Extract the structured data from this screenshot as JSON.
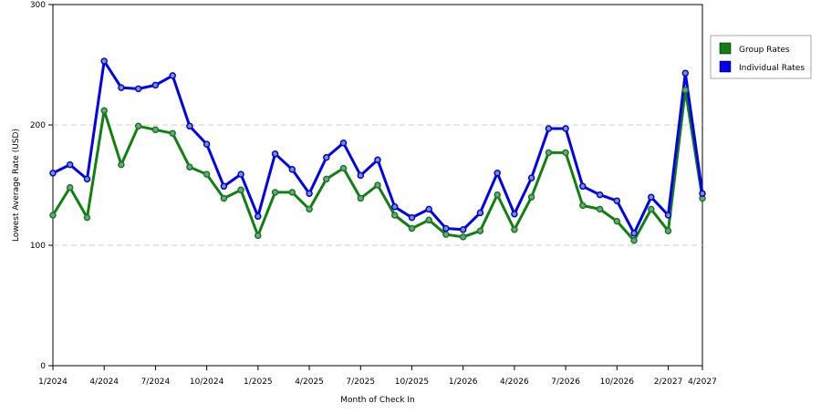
{
  "chart_data": {
    "type": "line",
    "xlabel": "Month of Check In",
    "ylabel": "Lowest Average Rate (USD)",
    "ylim": [
      0,
      300
    ],
    "yticks": [
      0,
      100,
      200,
      300
    ],
    "grid": true,
    "legend_position": "top-right",
    "x_tick_labels": [
      "1/2024",
      "4/2024",
      "7/2024",
      "10/2024",
      "1/2025",
      "4/2025",
      "7/2025",
      "10/2025",
      "1/2026",
      "4/2026",
      "7/2026",
      "10/2026",
      "2/2027",
      "4/2027"
    ],
    "x": [
      "1/2024",
      "2/2024",
      "3/2024",
      "4/2024",
      "5/2024",
      "6/2024",
      "7/2024",
      "8/2024",
      "9/2024",
      "10/2024",
      "11/2024",
      "12/2024",
      "1/2025",
      "2/2025",
      "3/2025",
      "4/2025",
      "5/2025",
      "6/2025",
      "7/2025",
      "8/2025",
      "9/2025",
      "10/2025",
      "11/2025",
      "12/2025",
      "1/2026",
      "2/2026",
      "3/2026",
      "4/2026",
      "5/2026",
      "6/2026",
      "7/2026",
      "8/2026",
      "9/2026",
      "10/2026",
      "11/2026",
      "12/2026",
      "2/2027",
      "3/2027",
      "4/2027"
    ],
    "series": [
      {
        "name": "Group Rates",
        "color": "#118011",
        "values": [
          125,
          148,
          123,
          212,
          167,
          199,
          196,
          193,
          165,
          159,
          139,
          146,
          108,
          144,
          144,
          130,
          155,
          164,
          139,
          150,
          125,
          114,
          121,
          109,
          107,
          112,
          142,
          113,
          140,
          177,
          177,
          133,
          130,
          120,
          104,
          130,
          112,
          229,
          139
        ]
      },
      {
        "name": "Individual Rates",
        "color": "#0000ee",
        "values": [
          160,
          167,
          155,
          253,
          231,
          230,
          233,
          241,
          199,
          184,
          149,
          159,
          124,
          176,
          163,
          143,
          173,
          185,
          158,
          171,
          132,
          123,
          130,
          114,
          113,
          127,
          160,
          126,
          156,
          197,
          197,
          149,
          142,
          137,
          110,
          140,
          125,
          243,
          143
        ]
      }
    ]
  }
}
